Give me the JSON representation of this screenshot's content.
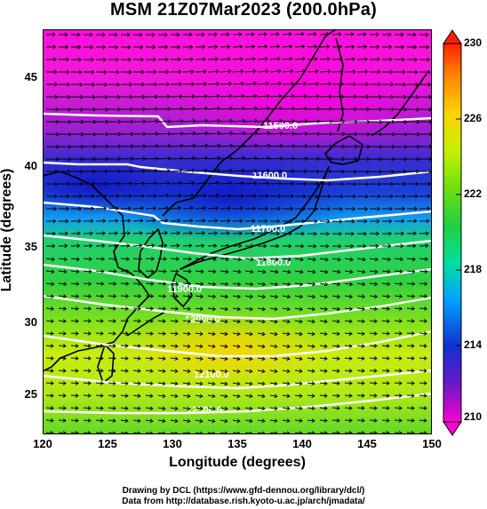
{
  "title": "MSM 21Z07Mar2023 (200.0hPa)",
  "xlabel": "Longitude (degrees)",
  "ylabel": "Latitude  (degrees)",
  "x_ticks": [
    "120",
    "125",
    "130",
    "135",
    "140",
    "145",
    "150"
  ],
  "y_ticks": [
    "25",
    "30",
    "35",
    "40",
    "45"
  ],
  "colorbar": {
    "ticks": [
      "210",
      "214",
      "218",
      "222",
      "226",
      "230"
    ],
    "min": 210,
    "max": 230,
    "colors": [
      "#ff00d0",
      "#6a18c8",
      "#1030d0",
      "#00b4ff",
      "#00e0a0",
      "#20d040",
      "#70e010",
      "#c8f000",
      "#ffd000",
      "#ff8000",
      "#ff2000"
    ]
  },
  "contour_labels": [
    "11500.0",
    "11600.0",
    "11700.0",
    "11800.0",
    "11900.0",
    "12000.0",
    "12100.0",
    "12300.0"
  ],
  "footer": {
    "line1": "Drawing by DCL (https://www.gfd-dennou.org/library/dcl/)",
    "line2": "Data from http://database.rish.kyoto-u.ac.jp/arch/jmadata/"
  },
  "colors": {
    "jet_core": "#ff10e0",
    "warm": "#ffd000",
    "contour": "#ffffff"
  }
}
